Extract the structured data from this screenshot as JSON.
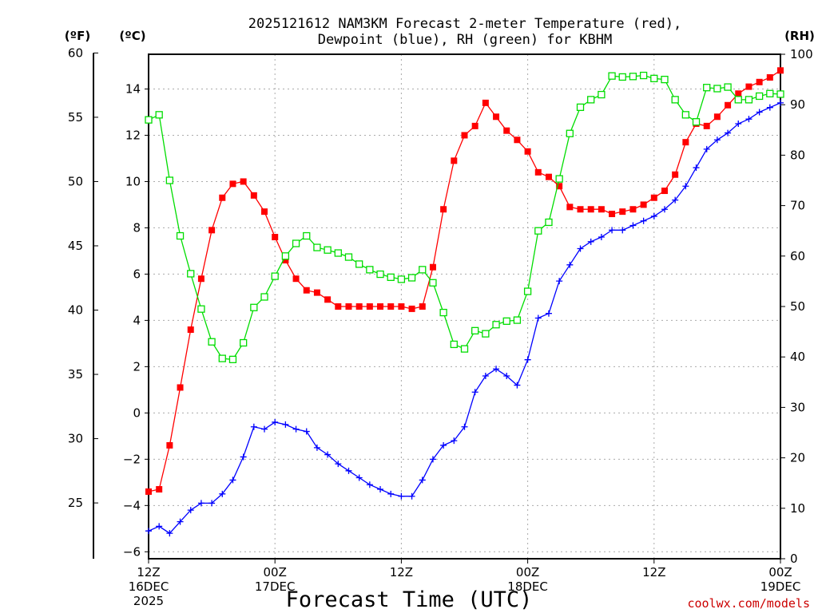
{
  "chart_data": {
    "type": "line",
    "title_lines": [
      "2025121612 NAM3KM Forecast 2-meter Temperature (red),",
      "Dewpoint (blue), RH (green) for KBHM"
    ],
    "xlabel": "Forecast Time (UTC)",
    "x_unit": "forecast hour",
    "xlim": [
      0,
      60
    ],
    "x_ticks": [
      {
        "value": 0,
        "lines": [
          "12Z",
          "16DEC",
          "2025"
        ]
      },
      {
        "value": 12,
        "lines": [
          "00Z",
          "17DEC"
        ]
      },
      {
        "value": 24,
        "lines": [
          "12Z"
        ]
      },
      {
        "value": 36,
        "lines": [
          "00Z",
          "18DEC"
        ]
      },
      {
        "value": 48,
        "lines": [
          "12Z"
        ]
      },
      {
        "value": 60,
        "lines": [
          "00Z",
          "19DEC"
        ]
      }
    ],
    "axis_c": {
      "unit_label": "(ºC)",
      "range": [
        -6.3,
        15.5
      ],
      "ticks": [
        -6,
        -4,
        -2,
        0,
        2,
        4,
        6,
        8,
        10,
        12,
        14
      ]
    },
    "axis_f": {
      "unit_label": "(ºF)",
      "range": [
        20.66,
        59.9
      ],
      "ticks": [
        25,
        30,
        35,
        40,
        45,
        50,
        55,
        60
      ]
    },
    "axis_rh": {
      "unit_label": "(RH)",
      "range": [
        0,
        100
      ],
      "ticks": [
        0,
        10,
        20,
        30,
        40,
        50,
        60,
        70,
        80,
        90,
        100
      ]
    },
    "grid": true,
    "series": [
      {
        "name": "2-meter Temperature",
        "unit": "°C",
        "color": "#ff0000",
        "marker": "filled-square",
        "x": [
          0,
          1,
          2,
          3,
          4,
          5,
          6,
          7,
          8,
          9,
          10,
          11,
          12,
          13,
          14,
          15,
          16,
          17,
          18,
          19,
          20,
          21,
          22,
          23,
          24,
          25,
          26,
          27,
          28,
          29,
          30,
          31,
          32,
          33,
          34,
          35,
          36,
          37,
          38,
          39,
          40,
          41,
          42,
          43,
          44,
          45,
          46,
          47,
          48,
          49,
          50,
          51,
          52,
          53,
          54,
          55,
          56,
          57,
          58,
          59,
          60
        ],
        "values": [
          -3.4,
          -3.3,
          -1.4,
          1.1,
          3.6,
          5.8,
          7.9,
          9.3,
          9.9,
          10.0,
          9.4,
          8.7,
          7.6,
          6.6,
          5.8,
          5.3,
          5.2,
          4.9,
          4.6,
          4.6,
          4.6,
          4.6,
          4.6,
          4.6,
          4.6,
          4.5,
          4.6,
          6.3,
          8.8,
          10.9,
          12.0,
          12.4,
          13.4,
          12.8,
          12.2,
          11.8,
          11.3,
          10.4,
          10.2,
          9.8,
          8.9,
          8.8,
          8.8,
          8.8,
          8.6,
          8.7,
          8.8,
          9.0,
          9.3,
          9.6,
          10.3,
          11.7,
          12.5,
          12.4,
          12.8,
          13.3,
          13.8,
          14.1,
          14.3,
          14.5,
          14.8
        ]
      },
      {
        "name": "Dewpoint",
        "unit": "°C",
        "color": "#0000ff",
        "marker": "plus",
        "x": [
          0,
          1,
          2,
          3,
          4,
          5,
          6,
          7,
          8,
          9,
          10,
          11,
          12,
          13,
          14,
          15,
          16,
          17,
          18,
          19,
          20,
          21,
          22,
          23,
          24,
          25,
          26,
          27,
          28,
          29,
          30,
          31,
          32,
          33,
          34,
          35,
          36,
          37,
          38,
          39,
          40,
          41,
          42,
          43,
          44,
          45,
          46,
          47,
          48,
          49,
          50,
          51,
          52,
          53,
          54,
          55,
          56,
          57,
          58,
          59,
          60
        ],
        "values": [
          -5.1,
          -4.9,
          -5.2,
          -4.7,
          -4.2,
          -3.9,
          -3.9,
          -3.5,
          -2.9,
          -1.9,
          -0.6,
          -0.7,
          -0.4,
          -0.5,
          -0.7,
          -0.8,
          -1.5,
          -1.8,
          -2.2,
          -2.5,
          -2.8,
          -3.1,
          -3.3,
          -3.5,
          -3.6,
          -3.6,
          -2.9,
          -2.0,
          -1.4,
          -1.2,
          -0.6,
          0.9,
          1.6,
          1.9,
          1.6,
          1.2,
          2.3,
          4.1,
          4.3,
          5.7,
          6.4,
          7.1,
          7.4,
          7.6,
          7.9,
          7.9,
          8.1,
          8.3,
          8.5,
          8.8,
          9.2,
          9.8,
          10.6,
          11.4,
          11.8,
          12.1,
          12.5,
          12.7,
          13.0,
          13.2,
          13.4
        ]
      },
      {
        "name": "RH",
        "unit": "%",
        "color": "#00dd00",
        "marker": "open-square",
        "x": [
          0,
          1,
          2,
          3,
          4,
          5,
          6,
          7,
          8,
          9,
          10,
          11,
          12,
          13,
          14,
          15,
          16,
          17,
          18,
          19,
          20,
          21,
          22,
          23,
          24,
          25,
          26,
          27,
          28,
          29,
          30,
          31,
          32,
          33,
          34,
          35,
          36,
          37,
          38,
          39,
          40,
          41,
          42,
          43,
          44,
          45,
          46,
          47,
          48,
          49,
          50,
          51,
          52,
          53,
          54,
          55,
          56,
          57,
          58,
          59,
          60
        ],
        "values": [
          87,
          88,
          75,
          64,
          56.5,
          49.5,
          43,
          39.7,
          39.5,
          42.8,
          49.8,
          51.9,
          56,
          60,
          62.5,
          64,
          61.7,
          61.2,
          60.6,
          59.8,
          58.4,
          57.3,
          56.4,
          55.8,
          55.4,
          55.7,
          57.3,
          54.7,
          48.8,
          42.5,
          41.6,
          45.2,
          44.6,
          46.4,
          47.1,
          47.3,
          53,
          65,
          66.7,
          75.3,
          84.3,
          89.5,
          91,
          92,
          95.7,
          95.5,
          95.6,
          95.8,
          95.2,
          95,
          91,
          88,
          86.6,
          93.4,
          93.2,
          93.5,
          91,
          91,
          91.7,
          92.2,
          92.1
        ]
      }
    ]
  },
  "credit": "coolwx.com/models"
}
